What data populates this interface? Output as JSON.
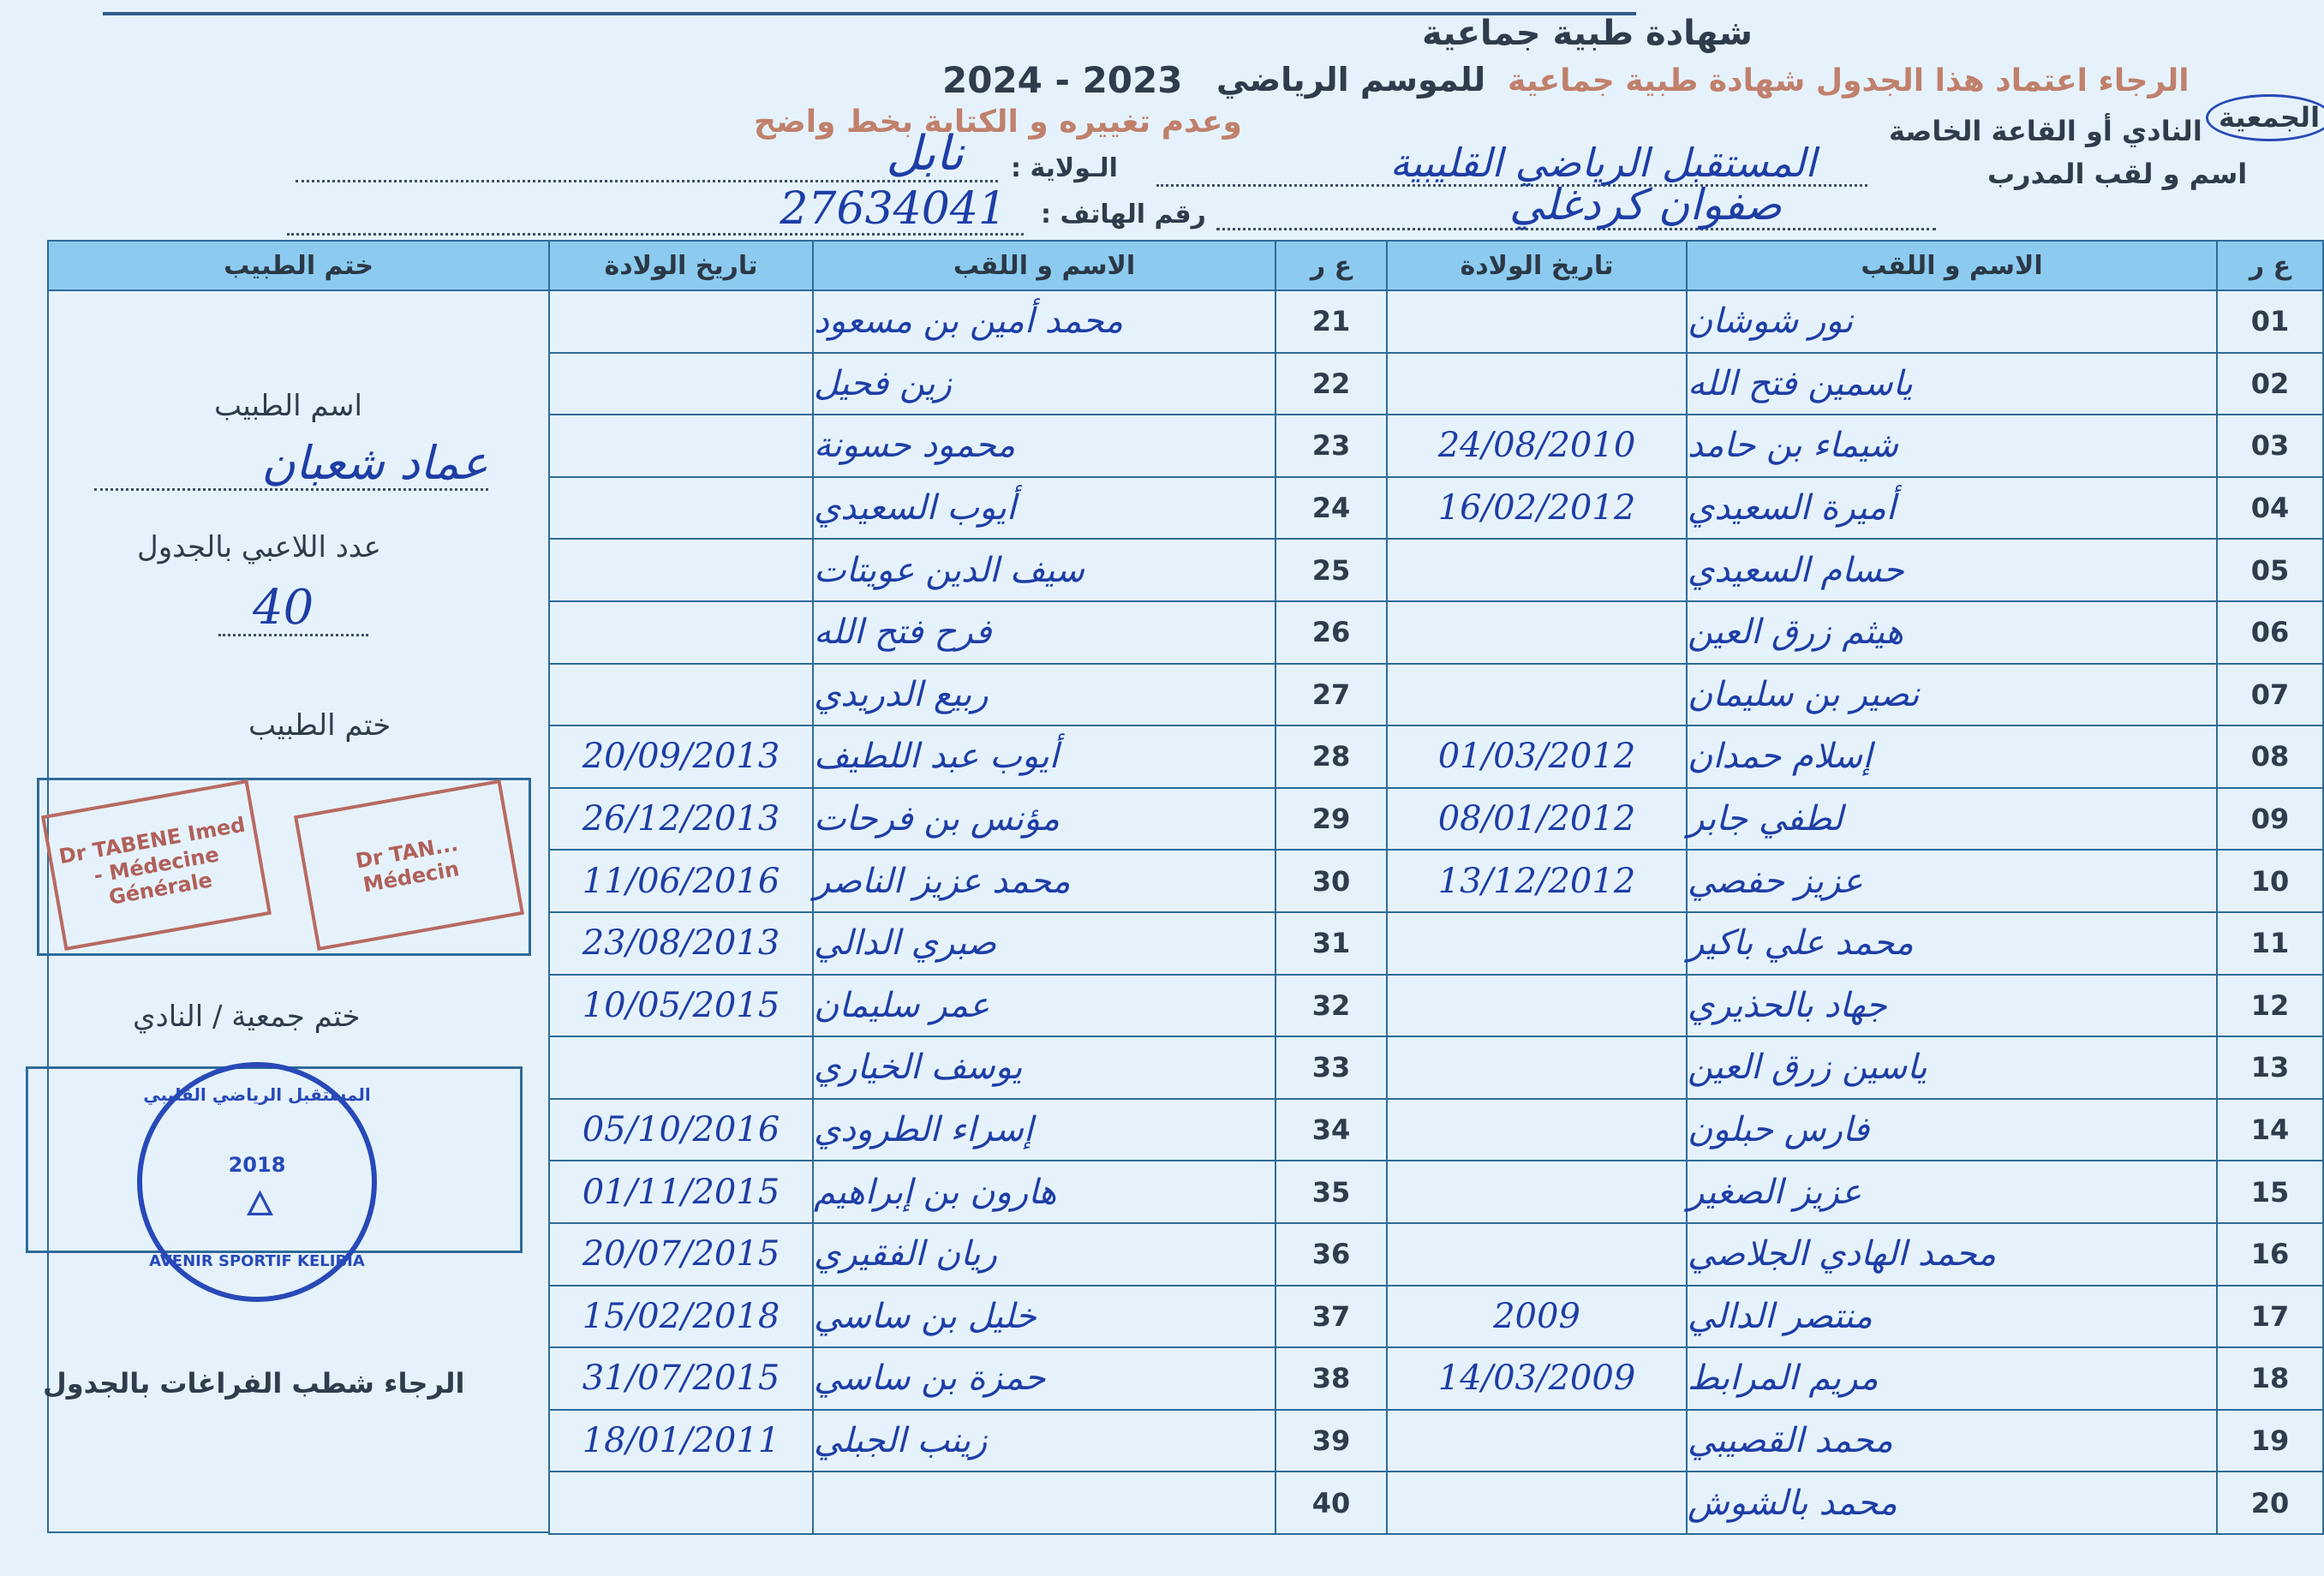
{
  "header": {
    "title": "شهادة طبية جماعية",
    "season_label": "للموسم الرياضي",
    "season_years": "2024 - 2023",
    "notice_line1": "الرجاء اعتماد هذا الجدول شهادة طبية جماعية",
    "notice_line2": "وعدم تغييره و الكتابة بخط واضح",
    "club_label_circled": "الجمعية",
    "club_label": "النادي أو القاعة الخاصة",
    "club_value": "المستقبل الرياضي القليبية",
    "wilaya_label": "الـولاية :",
    "wilaya_value": "نابل",
    "coach_label": "اسم و لقب المدرب",
    "coach_value": "صفوان كردغلي",
    "phone_label": "رقم الهاتف :",
    "phone_value": "27634041"
  },
  "table": {
    "headers": {
      "num": "ع ر",
      "name": "الاسم و اللقب",
      "dob": "تاريخ الولادة",
      "doctor_stamp": "ختم الطبيب"
    },
    "right_rows": [
      {
        "num": "01",
        "name": "نور شوشان",
        "dob": ""
      },
      {
        "num": "02",
        "name": "ياسمين فتح الله",
        "dob": ""
      },
      {
        "num": "03",
        "name": "شيماء بن حامد",
        "dob": "24/08/2010"
      },
      {
        "num": "04",
        "name": "أميرة السعيدي",
        "dob": "16/02/2012"
      },
      {
        "num": "05",
        "name": "حسام السعيدي",
        "dob": ""
      },
      {
        "num": "06",
        "name": "هيثم زرق العين",
        "dob": ""
      },
      {
        "num": "07",
        "name": "نصير بن سليمان",
        "dob": ""
      },
      {
        "num": "08",
        "name": "إسلام حمدان",
        "dob": "01/03/2012"
      },
      {
        "num": "09",
        "name": "لطفي جابر",
        "dob": "08/01/2012"
      },
      {
        "num": "10",
        "name": "عزيز حفصي",
        "dob": "13/12/2012"
      },
      {
        "num": "11",
        "name": "محمد علي باكير",
        "dob": ""
      },
      {
        "num": "12",
        "name": "جهاد بالحذيري",
        "dob": ""
      },
      {
        "num": "13",
        "name": "ياسين زرق العين",
        "dob": ""
      },
      {
        "num": "14",
        "name": "فارس حبلون",
        "dob": ""
      },
      {
        "num": "15",
        "name": "عزيز الصغير",
        "dob": ""
      },
      {
        "num": "16",
        "name": "محمد الهادي الجلاصي",
        "dob": ""
      },
      {
        "num": "17",
        "name": "منتصر الدالي",
        "dob": "2009"
      },
      {
        "num": "18",
        "name": "مريم المرابط",
        "dob": "14/03/2009"
      },
      {
        "num": "19",
        "name": "محمد القصيبي",
        "dob": ""
      },
      {
        "num": "20",
        "name": "محمد بالشوش",
        "dob": ""
      }
    ],
    "left_rows": [
      {
        "num": "21",
        "name": "محمد أمين بن مسعود",
        "dob": ""
      },
      {
        "num": "22",
        "name": "زين فحيل",
        "dob": ""
      },
      {
        "num": "23",
        "name": "محمود حسونة",
        "dob": ""
      },
      {
        "num": "24",
        "name": "أيوب السعيدي",
        "dob": ""
      },
      {
        "num": "25",
        "name": "سيف الدين عويتات",
        "dob": ""
      },
      {
        "num": "26",
        "name": "فرح فتح الله",
        "dob": ""
      },
      {
        "num": "27",
        "name": "ربيع الدريدي",
        "dob": ""
      },
      {
        "num": "28",
        "name": "أيوب عبد اللطيف",
        "dob": "20/09/2013"
      },
      {
        "num": "29",
        "name": "مؤنس بن فرحات",
        "dob": "26/12/2013"
      },
      {
        "num": "30",
        "name": "محمد عزيز الناصر",
        "dob": "11/06/2016"
      },
      {
        "num": "31",
        "name": "صبري الدالي",
        "dob": "23/08/2013"
      },
      {
        "num": "32",
        "name": "عمر سليمان",
        "dob": "10/05/2015"
      },
      {
        "num": "33",
        "name": "يوسف الخياري",
        "dob": ""
      },
      {
        "num": "34",
        "name": "إسراء الطرودي",
        "dob": "05/10/2016"
      },
      {
        "num": "35",
        "name": "هارون بن إبراهيم",
        "dob": "01/11/2015"
      },
      {
        "num": "36",
        "name": "ريان الفقيري",
        "dob": "20/07/2015"
      },
      {
        "num": "37",
        "name": "خليل بن ساسي",
        "dob": "15/02/2018"
      },
      {
        "num": "38",
        "name": "حمزة بن ساسي",
        "dob": "31/07/2015"
      },
      {
        "num": "39",
        "name": "زينب الجبلي",
        "dob": "18/01/2011"
      },
      {
        "num": "40",
        "name": "",
        "dob": ""
      }
    ]
  },
  "doctor_panel": {
    "doctor_name_label": "اسم الطبيب",
    "doctor_name_value": "عماد شعبان",
    "players_count_label": "عدد اللاعبي بالجدول",
    "players_count_value": "40",
    "doctor_stamp_label": "ختم الطبيب",
    "club_stamp_label": "ختم جمعية / النادي",
    "footer_note": "الرجاء شطب الفراغات بالجدول"
  },
  "stamps": {
    "doctor_stamp_1": "Dr TABENE Imed - Médecine Générale",
    "doctor_stamp_2": "Dr TAN... Médecin",
    "club_stamp_text": "AVENIR SPORTIF KELIBIA",
    "club_stamp_arabic": "المستقبل الرياضي القليبي",
    "club_stamp_year": "2018"
  },
  "colors": {
    "paper": "#e6f2fb",
    "header_fill": "#8ccbef",
    "grid_line": "#2f6b98",
    "ink": "#1e3ea6",
    "red_print": "#c0806c"
  }
}
